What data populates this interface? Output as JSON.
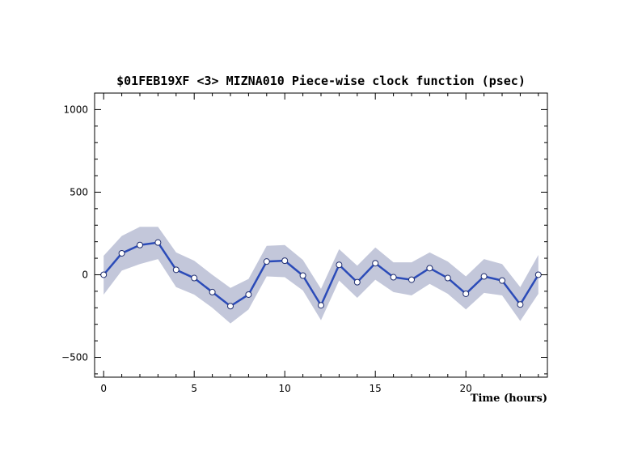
{
  "chart_data": {
    "type": "line",
    "title": "$01FEB19XF <3>  MIZNA010  Piece-wise clock function (psec)",
    "xlabel": "Time (hours)",
    "ylabel": "",
    "xlim": [
      -0.5,
      24.5
    ],
    "ylim": [
      -620,
      1100
    ],
    "x_ticks": [
      0,
      5,
      10,
      15,
      20
    ],
    "y_ticks": [
      -500,
      0,
      500,
      1000
    ],
    "x_tick_labels": [
      "0",
      "5",
      "10",
      "15",
      "20"
    ],
    "y_tick_labels": [
      "−500",
      "0",
      "500",
      "1000"
    ],
    "grid": false,
    "series": [
      {
        "x": [
          0,
          1,
          2,
          3,
          4,
          5,
          6,
          7,
          8,
          9,
          10,
          11,
          12,
          13,
          14,
          15,
          16,
          17,
          18,
          19,
          20,
          21,
          22,
          23,
          24
        ],
        "values": [
          0,
          130,
          180,
          195,
          30,
          -20,
          -105,
          -190,
          -120,
          80,
          85,
          -5,
          -185,
          60,
          -45,
          70,
          -15,
          -30,
          40,
          -20,
          -115,
          -10,
          -35,
          -180,
          0
        ],
        "upper": [
          115,
          235,
          290,
          290,
          135,
          85,
          0,
          -80,
          -25,
          175,
          180,
          90,
          -85,
          155,
          55,
          165,
          75,
          75,
          135,
          80,
          -10,
          95,
          65,
          -75,
          120
        ],
        "lower": [
          -120,
          25,
          65,
          95,
          -75,
          -120,
          -200,
          -295,
          -210,
          -10,
          -15,
          -95,
          -275,
          -35,
          -140,
          -30,
          -105,
          -125,
          -55,
          -115,
          -210,
          -110,
          -125,
          -280,
          -115
        ]
      }
    ],
    "colors": {
      "line": "#2b4bb8",
      "band": "#c3c7da",
      "marker_fill": "#ffffff",
      "marker_stroke": "#1f2d6e"
    }
  }
}
